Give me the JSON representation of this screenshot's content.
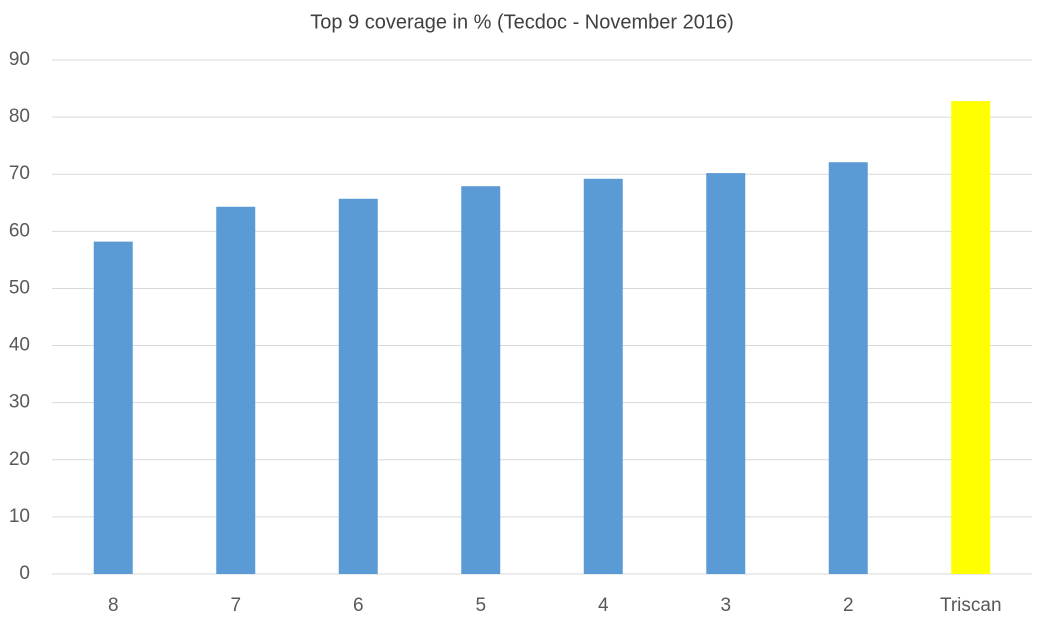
{
  "chart_data": {
    "type": "bar",
    "title": "Top 9 coverage in % (Tecdoc - November 2016)",
    "categories": [
      "8",
      "7",
      "6",
      "5",
      "4",
      "3",
      "2",
      "Triscan"
    ],
    "values": [
      58.2,
      64.3,
      65.7,
      67.9,
      69.2,
      70.2,
      72.1,
      82.8
    ],
    "colors": [
      "#5b9bd5",
      "#5b9bd5",
      "#5b9bd5",
      "#5b9bd5",
      "#5b9bd5",
      "#5b9bd5",
      "#5b9bd5",
      "#ffff00"
    ],
    "ylim": [
      0,
      90
    ],
    "yticks": [
      0,
      10,
      20,
      30,
      40,
      50,
      60,
      70,
      80,
      90
    ],
    "grid": true
  }
}
